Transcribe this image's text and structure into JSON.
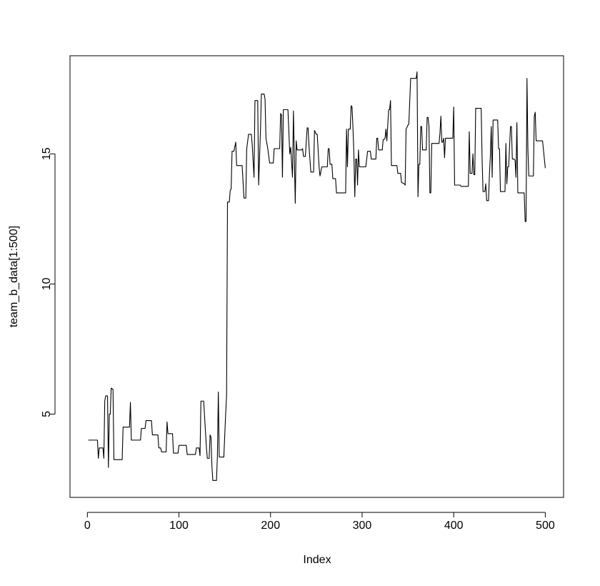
{
  "chart_data": {
    "type": "line",
    "x_label": "Index",
    "y_label": "team_b_data[1:500]",
    "color": "#000000",
    "xlim": [
      -18.96,
      519.96
    ],
    "ylim": [
      1.8,
      18.77
    ],
    "xticks": [
      0,
      100,
      200,
      300,
      400,
      500
    ],
    "yticks": [
      5,
      10,
      15
    ],
    "x": [
      1,
      11,
      12,
      13,
      17,
      18,
      19,
      20,
      22,
      23,
      24,
      25,
      26,
      28,
      29,
      38,
      39,
      46,
      47,
      48,
      58,
      59,
      63,
      64,
      70,
      71,
      77,
      78,
      80,
      81,
      86,
      87,
      88,
      93,
      94,
      99,
      100,
      108,
      109,
      118,
      119,
      122,
      123,
      124,
      127,
      129,
      130,
      131,
      133,
      134,
      135,
      136,
      137,
      141,
      142,
      143,
      144,
      149,
      151,
      152,
      153,
      155,
      156,
      157,
      158,
      160,
      162,
      163,
      169,
      171,
      173,
      174,
      176,
      179,
      180,
      182,
      183,
      186,
      187,
      189,
      190,
      193,
      194,
      195,
      197,
      199,
      203,
      204,
      210,
      211,
      212,
      213,
      214,
      219,
      221,
      222,
      224,
      225,
      227,
      228,
      229,
      234,
      235,
      236,
      238,
      240,
      241,
      242,
      244,
      247,
      248,
      250,
      251,
      253,
      254,
      256,
      262,
      263,
      264,
      265,
      267,
      268,
      271,
      272,
      282,
      283,
      284,
      285,
      287,
      288,
      289,
      290,
      291,
      292,
      293,
      294,
      295,
      296,
      297,
      304,
      305,
      306,
      309,
      310,
      315,
      316,
      317,
      318,
      322,
      323,
      324,
      325,
      326,
      327,
      329,
      330,
      331,
      332,
      338,
      339,
      342,
      343,
      346,
      347,
      348,
      350,
      351,
      353,
      358,
      359,
      360,
      361,
      362,
      363,
      364,
      365,
      366,
      370,
      371,
      372,
      373,
      374,
      375,
      376,
      384,
      385,
      386,
      387,
      388,
      389,
      390,
      391,
      399,
      400,
      401,
      407,
      408,
      416,
      417,
      418,
      420,
      421,
      422,
      423,
      424,
      430,
      431,
      432,
      434,
      435,
      436,
      438,
      439,
      440,
      441,
      442,
      443,
      448,
      449,
      450,
      451,
      456,
      457,
      458,
      459,
      460,
      462,
      463,
      464,
      466,
      467,
      468,
      469,
      470,
      477,
      478,
      479,
      480,
      481,
      482,
      487,
      488,
      489,
      490,
      497,
      500
    ],
    "values": [
      4.0,
      4.0,
      3.3,
      3.7,
      3.7,
      3.3,
      5.5,
      5.7,
      5.7,
      2.95,
      5.0,
      5.0,
      6.0,
      5.95,
      3.25,
      3.25,
      4.5,
      4.5,
      5.45,
      4.0,
      4.0,
      4.45,
      4.45,
      4.75,
      4.75,
      4.2,
      4.2,
      3.7,
      3.7,
      3.55,
      3.55,
      4.7,
      4.25,
      4.25,
      3.5,
      3.5,
      3.8,
      3.8,
      3.45,
      3.45,
      3.7,
      3.7,
      3.4,
      5.5,
      5.5,
      4.3,
      3.7,
      3.3,
      3.3,
      4.2,
      4.1,
      3.0,
      2.45,
      2.45,
      3.4,
      5.85,
      3.35,
      3.35,
      5.0,
      5.7,
      13.15,
      13.15,
      13.6,
      13.65,
      15.1,
      15.1,
      15.45,
      14.55,
      14.55,
      13.3,
      13.3,
      15.2,
      15.75,
      15.75,
      15.35,
      14.1,
      17.05,
      17.05,
      13.8,
      15.9,
      17.3,
      17.3,
      17.1,
      15.6,
      15.2,
      14.65,
      14.65,
      15.2,
      15.2,
      16.55,
      16.5,
      14.1,
      16.7,
      16.7,
      15.0,
      15.25,
      14.1,
      16.65,
      13.1,
      15.5,
      15.15,
      15.15,
      15.2,
      14.9,
      14.9,
      16.0,
      16.0,
      15.3,
      14.3,
      14.3,
      15.9,
      15.75,
      15.75,
      14.5,
      14.15,
      14.5,
      14.5,
      15.2,
      15.2,
      14.6,
      14.6,
      14.05,
      14.05,
      13.5,
      13.5,
      15.95,
      14.5,
      15.95,
      15.95,
      16.85,
      16.8,
      16.0,
      15.0,
      13.35,
      14.8,
      14.8,
      13.8,
      15.15,
      14.5,
      14.5,
      14.8,
      15.1,
      15.1,
      14.8,
      14.8,
      15.6,
      15.6,
      15.15,
      15.15,
      15.55,
      15.55,
      15.6,
      15.95,
      15.5,
      16.7,
      16.7,
      17.05,
      14.55,
      14.55,
      14.25,
      14.25,
      13.9,
      13.85,
      13.8,
      15.95,
      16.1,
      16.15,
      17.9,
      17.9,
      17.9,
      18.15,
      13.35,
      14.6,
      14.6,
      16.05,
      16.05,
      15.15,
      15.15,
      16.4,
      16.4,
      16.05,
      13.5,
      13.5,
      15.4,
      15.4,
      15.8,
      16.45,
      15.45,
      15.45,
      15.6,
      14.85,
      15.6,
      15.6,
      16.8,
      13.8,
      13.8,
      13.75,
      13.75,
      15.85,
      14.25,
      14.25,
      15.0,
      14.2,
      14.2,
      16.75,
      16.75,
      14.8,
      13.55,
      13.55,
      13.85,
      13.2,
      13.2,
      14.2,
      14.9,
      16.05,
      14.1,
      16.3,
      16.3,
      15.2,
      15.2,
      13.55,
      13.55,
      15.4,
      13.85,
      14.5,
      14.5,
      16.05,
      16.05,
      14.8,
      14.8,
      14.75,
      14.1,
      16.2,
      13.5,
      13.5,
      12.4,
      12.4,
      17.9,
      15.2,
      14.15,
      14.15,
      16.45,
      16.6,
      15.5,
      15.5,
      14.45
    ]
  }
}
